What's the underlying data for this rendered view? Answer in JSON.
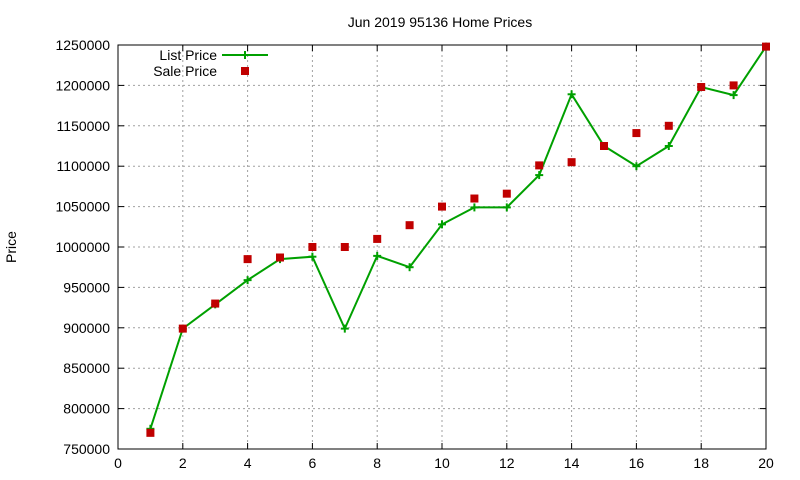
{
  "chart_data": {
    "type": "line",
    "title": "Jun 2019 95136 Home Prices",
    "xlabel": "",
    "ylabel": "Price",
    "xlim": [
      0,
      20
    ],
    "ylim": [
      750000,
      1250000
    ],
    "xticks": [
      0,
      2,
      4,
      6,
      8,
      10,
      12,
      14,
      16,
      18,
      20
    ],
    "yticks": [
      750000,
      800000,
      850000,
      900000,
      950000,
      1000000,
      1050000,
      1100000,
      1150000,
      1200000,
      1250000
    ],
    "x": [
      1,
      2,
      3,
      4,
      5,
      6,
      7,
      8,
      9,
      10,
      11,
      12,
      13,
      14,
      15,
      16,
      17,
      18,
      19,
      20
    ],
    "grid": true,
    "legend_position": "top-left",
    "series": [
      {
        "name": "List Price",
        "style": "line with plus markers",
        "color": "#00a000",
        "values": [
          775000,
          899000,
          929000,
          959000,
          985000,
          988000,
          899000,
          989000,
          975000,
          1028000,
          1049000,
          1049000,
          1089000,
          1189000,
          1125000,
          1100000,
          1125000,
          1198000,
          1188000,
          1248000
        ]
      },
      {
        "name": "Sale Price",
        "style": "square markers",
        "color": "#c00000",
        "values": [
          770000,
          899000,
          930000,
          985000,
          987000,
          1000000,
          1000000,
          1010000,
          1027000,
          1050000,
          1060000,
          1066000,
          1101000,
          1105000,
          1125000,
          1141000,
          1150000,
          1198000,
          1200000,
          1248000
        ]
      }
    ]
  }
}
